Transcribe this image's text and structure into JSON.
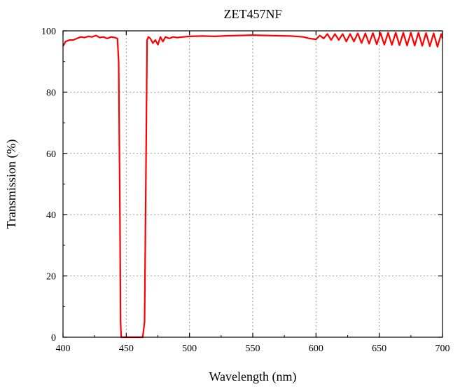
{
  "chart_data": {
    "type": "line",
    "title": "ZET457NF",
    "xlabel": "Wavelength (nm)",
    "ylabel": "Transmission (%)",
    "xlim": [
      400,
      700
    ],
    "ylim": [
      0,
      100
    ],
    "xticks": [
      400,
      450,
      500,
      550,
      600,
      650,
      700
    ],
    "yticks": [
      0,
      20,
      40,
      60,
      80,
      100
    ],
    "grid": true,
    "line_color": "#ff0000",
    "series": [
      {
        "x": [
          400,
          402,
          405,
          408,
          411,
          414,
          417,
          420,
          423,
          426,
          429,
          432,
          435,
          438,
          441,
          443,
          444,
          445,
          445.5,
          446,
          447,
          450,
          455,
          460,
          463,
          464.5,
          465.5,
          466.5,
          467.5,
          469,
          471,
          473,
          475,
          477,
          479,
          481,
          484,
          487,
          490,
          495,
          500,
          510,
          520,
          530,
          540,
          550,
          560,
          570,
          580,
          590,
          595,
          600,
          603,
          606,
          609,
          612,
          615,
          618,
          621,
          624,
          627,
          630,
          633,
          636,
          639,
          642,
          645,
          648,
          651,
          654,
          657,
          660,
          663,
          666,
          669,
          672,
          675,
          678,
          681,
          684,
          687,
          690,
          693,
          696,
          699,
          700
        ],
        "y": [
          95,
          96.5,
          97,
          97,
          97.5,
          98,
          97.8,
          98.2,
          98,
          98.5,
          97.8,
          98,
          97.5,
          98,
          97.8,
          97.5,
          90,
          40,
          5,
          0,
          0,
          0,
          0,
          0,
          0,
          5,
          50,
          97,
          98,
          97.5,
          96,
          97,
          95.5,
          98,
          96.5,
          98,
          97.5,
          98,
          97.8,
          98,
          98.2,
          98.3,
          98.2,
          98.4,
          98.5,
          98.6,
          98.5,
          98.4,
          98.3,
          98,
          97.5,
          97.2,
          98.5,
          97.5,
          99,
          97,
          99,
          97,
          99,
          96.5,
          99,
          96.5,
          99.2,
          96,
          99.2,
          95.8,
          99.3,
          95.6,
          99.3,
          95.5,
          99.4,
          95.4,
          99.4,
          95.3,
          99.4,
          95.2,
          99.4,
          95.2,
          99.4,
          95.1,
          99.3,
          95,
          99.2,
          94.8,
          99,
          97.5
        ]
      }
    ]
  }
}
